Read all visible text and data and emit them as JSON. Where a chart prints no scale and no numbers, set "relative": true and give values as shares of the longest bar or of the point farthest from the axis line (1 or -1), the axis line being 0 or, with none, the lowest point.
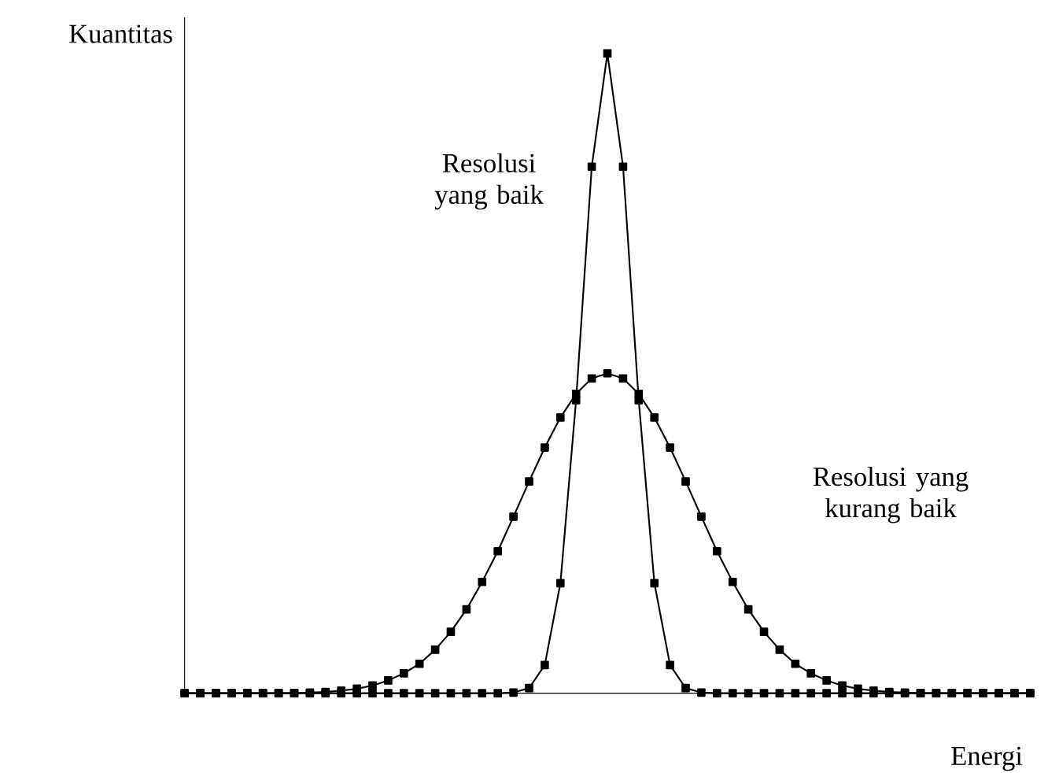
{
  "chart_data": {
    "type": "line",
    "relative": true,
    "xlabel": "Energi",
    "ylabel": "Kuantitas",
    "marker": "square",
    "line_style": "solid",
    "categories": [
      null,
      null,
      null,
      null,
      null,
      null,
      null,
      null,
      null,
      null,
      null,
      null,
      null,
      null,
      null,
      null,
      null,
      null,
      null,
      null,
      null,
      null,
      null,
      null,
      null,
      null,
      null,
      null,
      null,
      null,
      null,
      null,
      null,
      null,
      null,
      null,
      null,
      null,
      null,
      null,
      null,
      null,
      null,
      null,
      null,
      null,
      null,
      null,
      null,
      null,
      null,
      null,
      null,
      null,
      null
    ],
    "series": [
      {
        "color": "#000000",
        "values": [
          0,
          0,
          0,
          0,
          0,
          0,
          0,
          0,
          0,
          0,
          0,
          0,
          0,
          0,
          0,
          0,
          0,
          0,
          0,
          0,
          0,
          0.001,
          0.008,
          0.044,
          0.172,
          0.458,
          0.823,
          1,
          0.823,
          0.458,
          0.172,
          0.044,
          0.008,
          0.001,
          0,
          0,
          0,
          0,
          0,
          0,
          0,
          0,
          0,
          0,
          0,
          0,
          0,
          0,
          0,
          0,
          0,
          0,
          0,
          0,
          0
        ]
      },
      {
        "color": "#000000",
        "values": [
          0,
          0,
          0,
          0,
          0,
          0,
          0,
          0,
          0.001,
          0.002,
          0.004,
          0.007,
          0.012,
          0.02,
          0.031,
          0.046,
          0.068,
          0.096,
          0.131,
          0.174,
          0.222,
          0.276,
          0.331,
          0.384,
          0.431,
          0.468,
          0.492,
          0.5,
          0.492,
          0.468,
          0.431,
          0.384,
          0.331,
          0.276,
          0.222,
          0.174,
          0.131,
          0.096,
          0.068,
          0.046,
          0.031,
          0.02,
          0.012,
          0.007,
          0.004,
          0.002,
          0.001,
          0,
          0,
          0,
          0,
          0,
          0,
          0,
          0
        ]
      }
    ],
    "annotations": [
      "Resolusi yang baik",
      "Resolusi yang kurang baik"
    ]
  }
}
